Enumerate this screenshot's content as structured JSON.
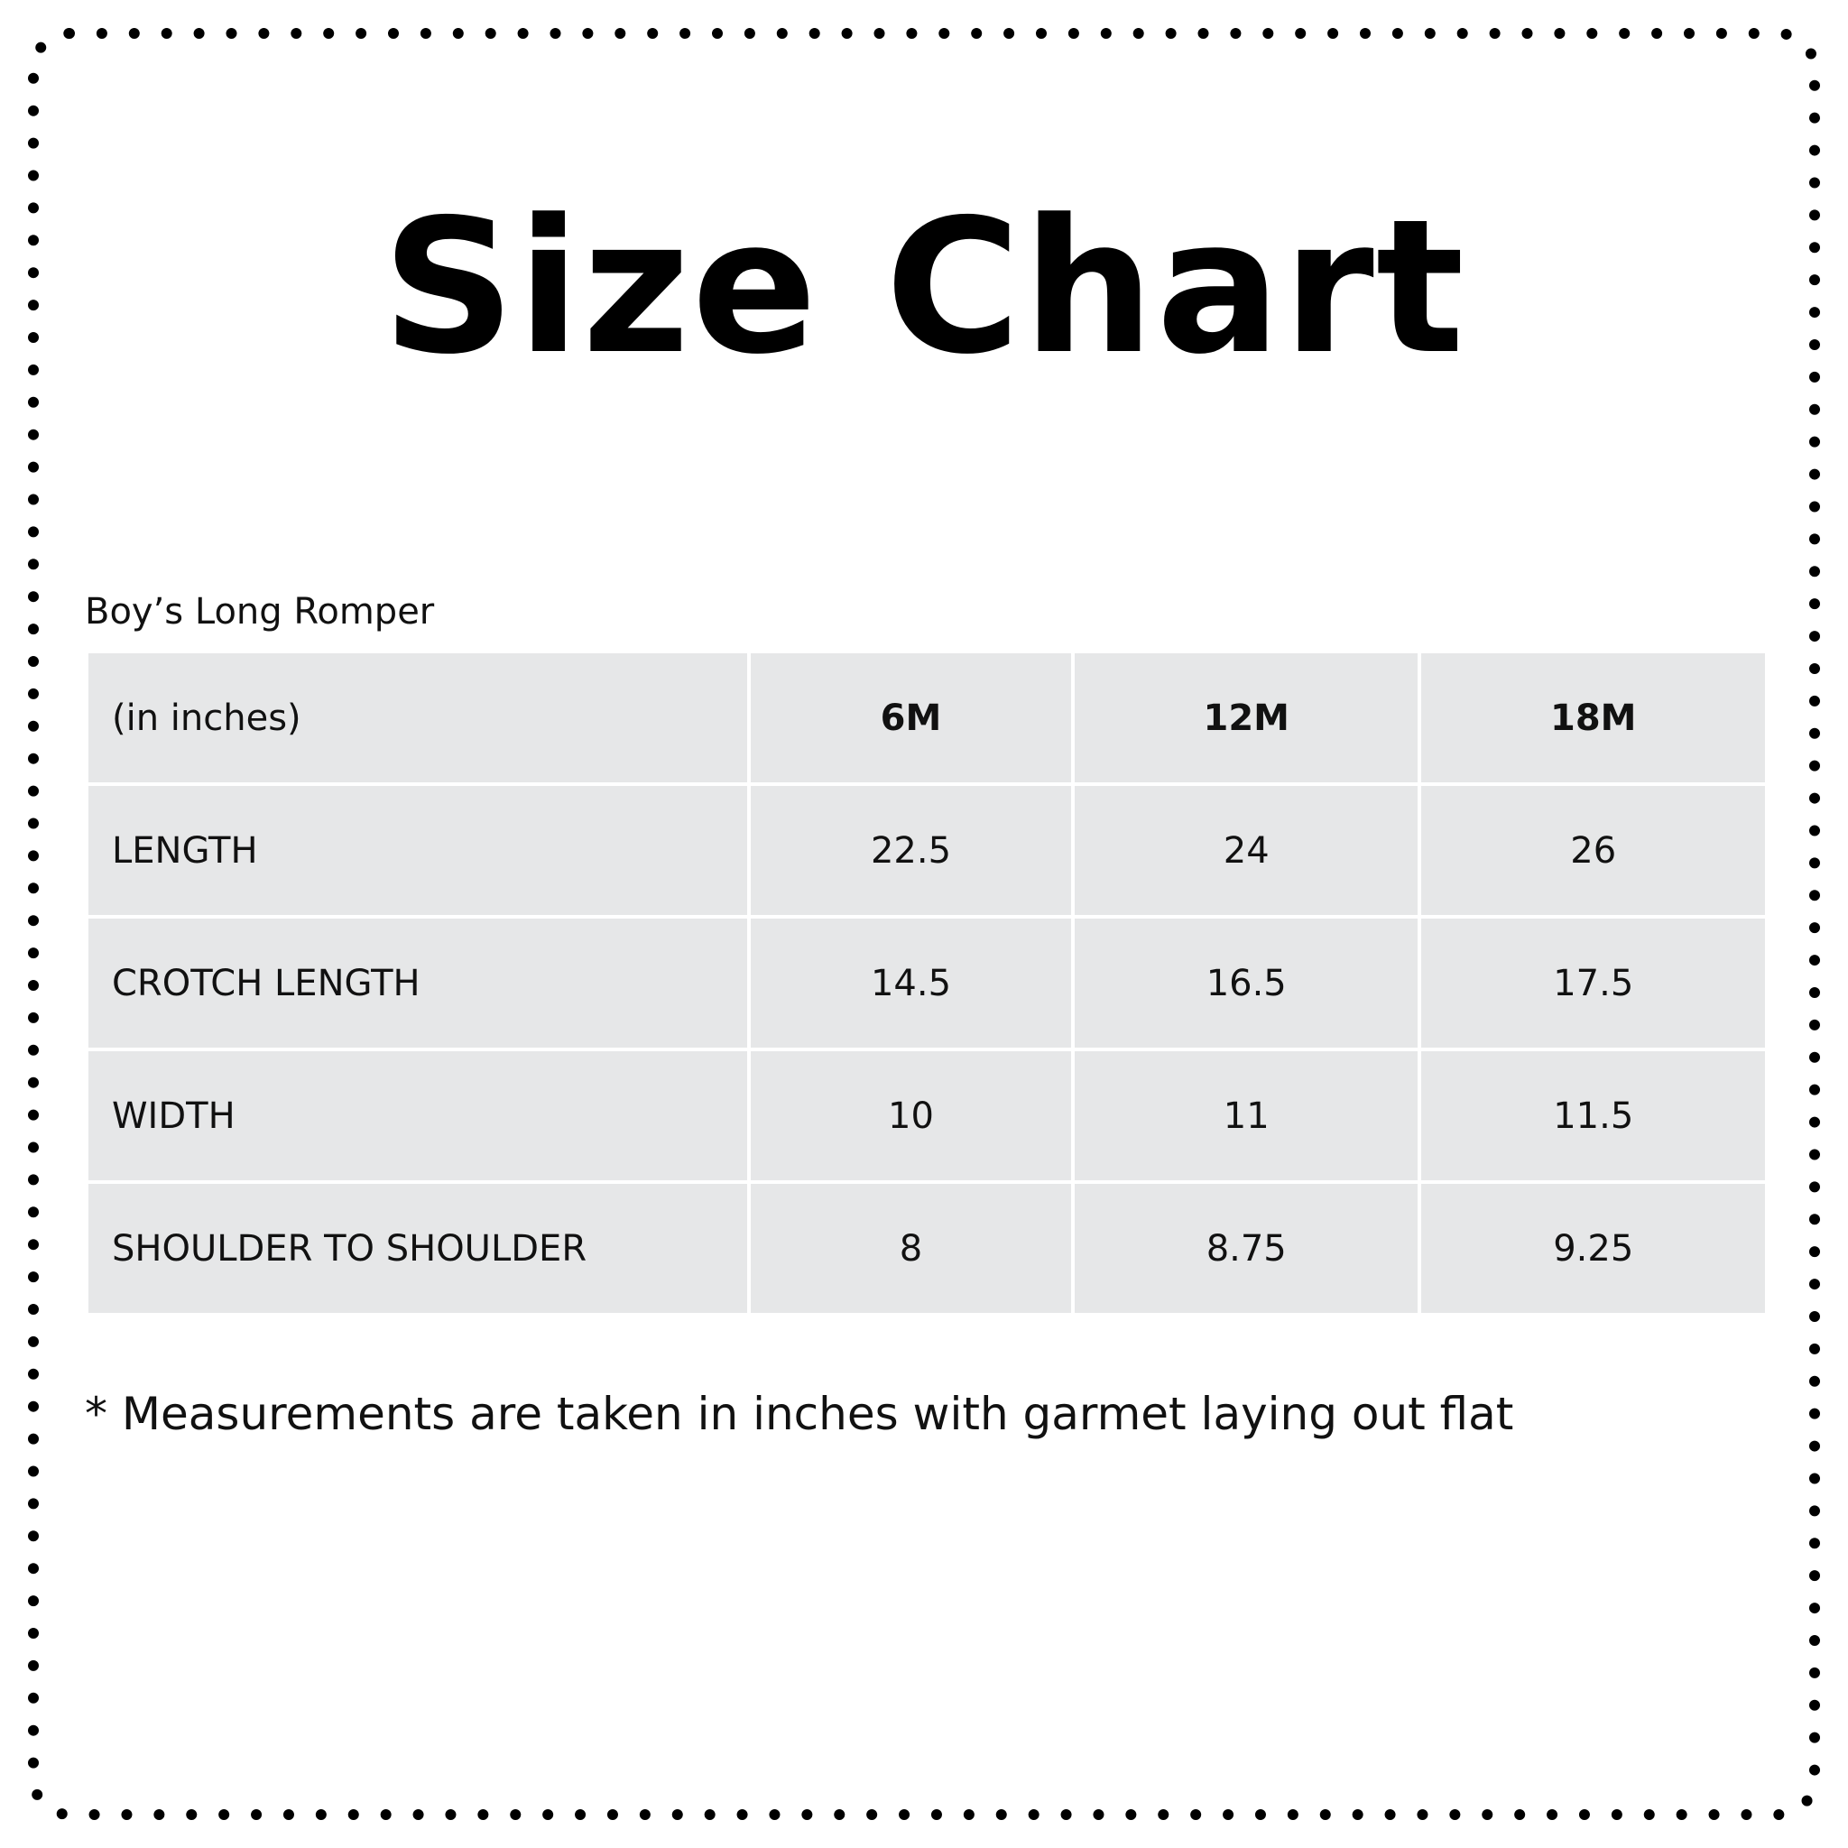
{
  "title": "Size Chart",
  "subtitle": "Boy’s Long Romper",
  "table": {
    "header": [
      "(in inches)",
      "6M",
      "12M",
      "18M"
    ],
    "rows": [
      [
        "LENGTH",
        "22.5",
        "24",
        "26"
      ],
      [
        "CROTCH LENGTH",
        "14.5",
        "16.5",
        "17.5"
      ],
      [
        "WIDTH",
        "10",
        "11",
        "11.5"
      ],
      [
        "SHOULDER TO SHOULDER",
        "8",
        "8.75",
        "9.25"
      ]
    ]
  },
  "note": "* Measurements are taken in inches with garmet laying out flat",
  "colors": {
    "cell": "#e6e7e8",
    "border_dots": "#000000"
  }
}
